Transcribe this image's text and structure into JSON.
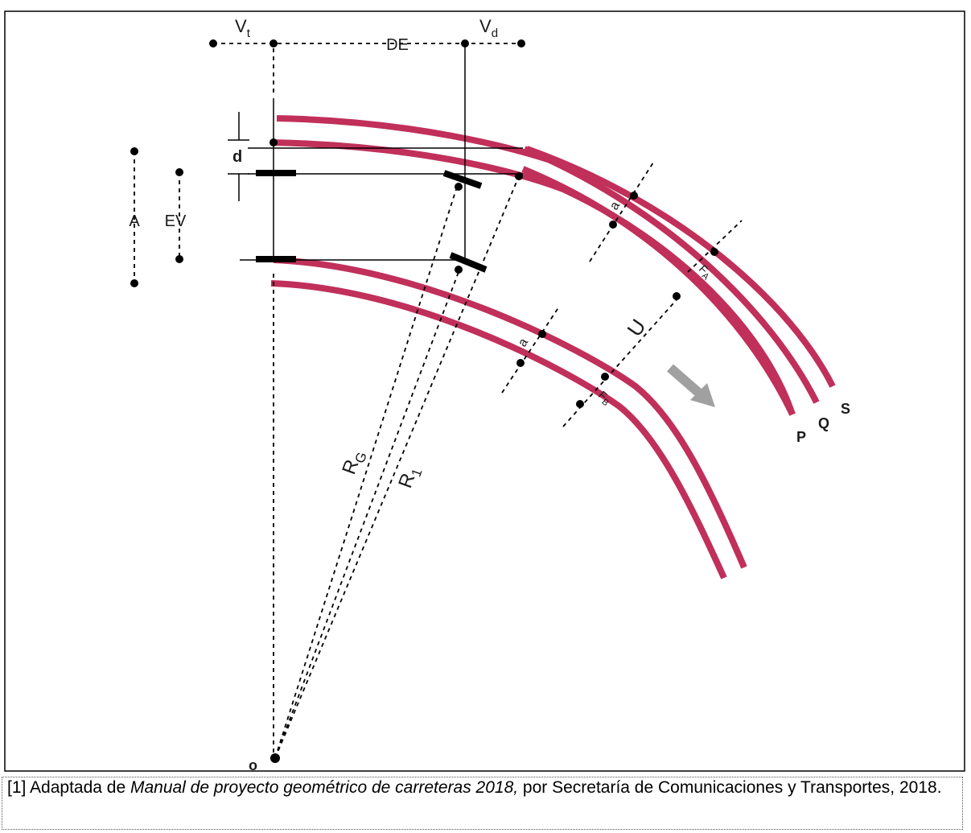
{
  "labels": {
    "vt": "V",
    "vt_sub": "t",
    "vd": "V",
    "vd_sub": "d",
    "de": "DE",
    "d": "d",
    "a_total": "A",
    "ev": "EV",
    "a_upper": "a",
    "a_lower": "a",
    "fa": "F",
    "fa_sub": "A",
    "fb": "F",
    "fb_sub": "B",
    "u": "U",
    "rg": "R",
    "rg_sub": "G",
    "r1": "R",
    "r1_sub": "1",
    "p": "P",
    "q": "Q",
    "s": "S",
    "o": "o"
  },
  "colors": {
    "rail": "#c0305a",
    "arrow": "#a0a0a0",
    "ink": "#000000"
  },
  "caption": {
    "ref": "[1] Adaptada de ",
    "title": "Manual de proyecto geométrico de carreteras 2018,",
    "rest": " por Secretaría de Comunicaciones y Transportes, 2018."
  }
}
